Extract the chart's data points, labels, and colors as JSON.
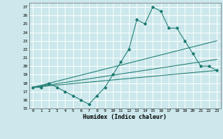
{
  "title": "",
  "xlabel": "Humidex (Indice chaleur)",
  "bg_color": "#cce8ec",
  "grid_color": "#ffffff",
  "line_color": "#1a7a6e",
  "xlim": [
    -0.5,
    23.5
  ],
  "ylim": [
    15,
    27.5
  ],
  "yticks": [
    15,
    16,
    17,
    18,
    19,
    20,
    21,
    22,
    23,
    24,
    25,
    26,
    27
  ],
  "xticks": [
    0,
    1,
    2,
    3,
    4,
    5,
    6,
    7,
    8,
    9,
    10,
    11,
    12,
    13,
    14,
    15,
    16,
    17,
    18,
    19,
    20,
    21,
    22,
    23
  ],
  "series1_x": [
    0,
    1,
    2,
    3,
    4,
    5,
    6,
    7,
    8,
    9,
    10,
    11,
    12,
    13,
    14,
    15,
    16,
    17,
    18,
    19,
    20,
    21,
    22,
    23
  ],
  "series1_y": [
    17.5,
    17.5,
    18.0,
    17.5,
    17.0,
    16.5,
    16.0,
    15.5,
    16.5,
    17.5,
    19.0,
    20.5,
    22.0,
    25.5,
    25.0,
    27.0,
    26.5,
    24.5,
    24.5,
    23.0,
    21.5,
    20.0,
    20.0,
    19.5
  ],
  "series2_x": [
    0,
    23
  ],
  "series2_y": [
    17.5,
    19.5
  ],
  "series3_x": [
    0,
    23
  ],
  "series3_y": [
    17.5,
    23.0
  ],
  "series4_x": [
    0,
    23
  ],
  "series4_y": [
    17.5,
    20.8
  ]
}
